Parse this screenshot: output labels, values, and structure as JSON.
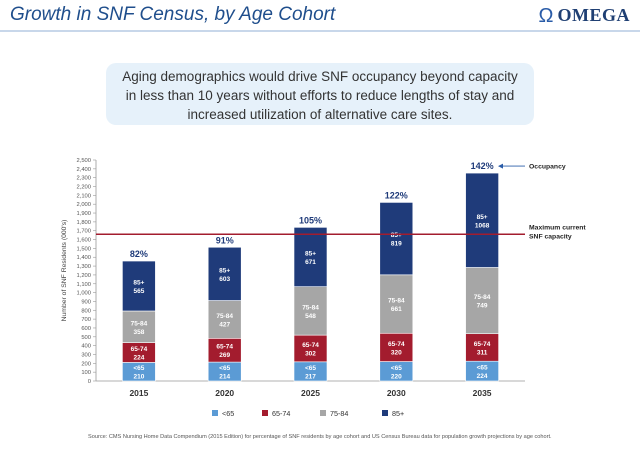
{
  "header": {
    "title": "Growth in SNF Census, by Age Cohort",
    "logo_text": "OMEGA"
  },
  "callout": "Aging demographics would drive SNF occupancy beyond capacity in less than 10 years without efforts to reduce lengths of stay and increased utilization of alternative care sites.",
  "source": "Source:  CMS Nursing Home Data Compendium (2015 Edition) for percentage of SNF residents by age cohort and US Census Bureau data for population growth projections by age cohort.",
  "chart_data": {
    "type": "bar",
    "stacked": true,
    "ylabel": "Number of SNF Residents (000's)",
    "ylim": [
      0,
      2500
    ],
    "ytick_step": 100,
    "categories": [
      "2015",
      "2020",
      "2025",
      "2030",
      "2035"
    ],
    "series": [
      {
        "name": "<65",
        "label": "<65",
        "color": "#5b9bd5",
        "values": [
          210,
          214,
          217,
          220,
          224
        ]
      },
      {
        "name": "65-74",
        "label": "65-74",
        "color": "#a31c2e",
        "values": [
          224,
          269,
          302,
          320,
          311
        ]
      },
      {
        "name": "75-84",
        "label": "75-84",
        "color": "#a6a6a6",
        "values": [
          358,
          427,
          548,
          661,
          749
        ]
      },
      {
        "name": "85+",
        "label": "85+",
        "color": "#1f3b7a",
        "values": [
          565,
          603,
          671,
          819,
          1068
        ]
      }
    ],
    "occupancy": [
      "82%",
      "91%",
      "105%",
      "122%",
      "142%"
    ],
    "capacity_line": {
      "value": 1660,
      "color": "#a31c2e",
      "label_1": "Maximum current",
      "label_2": "SNF capacity"
    },
    "occupancy_label": "Occupancy",
    "legend_position": "bottom"
  }
}
